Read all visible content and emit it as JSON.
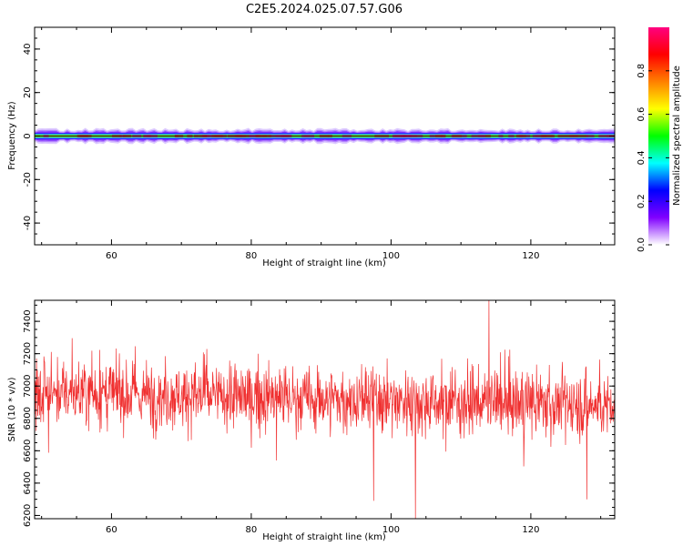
{
  "title": "C2E5.2024.025.07.57.G06",
  "chart_data": [
    {
      "type": "heatmap",
      "name": "spectrogram",
      "xlabel": "Height of straight line (km)",
      "ylabel": "Frequency (Hz)",
      "xlim": [
        49,
        132
      ],
      "ylim": [
        -50,
        50
      ],
      "xticks": [
        60,
        80,
        100,
        120
      ],
      "yticks": [
        -40,
        -20,
        0,
        20,
        40
      ],
      "band_center_hz": 0,
      "band_halfwidth_hz": 3,
      "colorbar": {
        "label": "Normalized spectral amplitude",
        "range": [
          0,
          1
        ],
        "ticks": [
          "0.0",
          "0.2",
          "0.4",
          "0.6",
          "0.8"
        ],
        "colormap": [
          "#ffffff",
          "#8000ff",
          "#0000ff",
          "#00ffff",
          "#00ff00",
          "#ffff00",
          "#ff8000",
          "#ff0000",
          "#ff0080"
        ]
      }
    },
    {
      "type": "line",
      "name": "snr",
      "xlabel": "Height of straight line (km)",
      "ylabel": "SNR (10 * v/v)",
      "xlim": [
        49,
        132
      ],
      "ylim": [
        6180,
        7530
      ],
      "xticks": [
        60,
        80,
        100,
        120
      ],
      "yticks": [
        6200,
        6400,
        6600,
        6800,
        7000,
        7200,
        7400
      ],
      "color": "#f03030",
      "series": [
        {
          "x_range": [
            49,
            132
          ],
          "n_points": 1500,
          "mean_start": 6960,
          "mean_end": 6880,
          "typical_min": 6550,
          "typical_max": 7350,
          "extremes": [
            {
              "x": 114,
              "y": 7530
            },
            {
              "x": 103.5,
              "y": 6180
            },
            {
              "x": 97.5,
              "y": 6290
            },
            {
              "x": 128,
              "y": 6300
            }
          ]
        }
      ]
    }
  ]
}
